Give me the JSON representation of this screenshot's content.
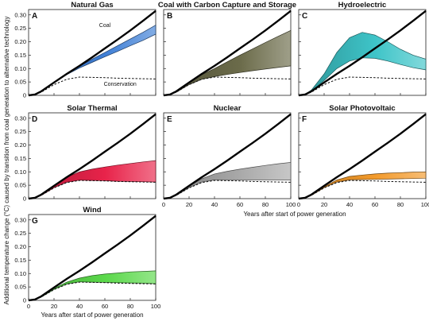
{
  "ylabel": "Additional temperature change (°C) caused by transition from coal generation to alternative technology",
  "xlabel": "Years after start of power generation",
  "chart_data": {
    "type": "area",
    "xlim": [
      0,
      100
    ],
    "ylim": [
      0,
      0.32
    ],
    "xticks": [
      0,
      20,
      40,
      60,
      80,
      100
    ],
    "yticks": [
      0,
      0.05,
      0.1,
      0.15,
      0.2,
      0.25,
      0.3
    ],
    "ytick_labels": [
      "0",
      "0.05",
      "0.10",
      "0.15",
      "0.20",
      "0.25",
      "0.30"
    ],
    "reference_lines": {
      "coal": {
        "label": "Coal",
        "x": [
          0,
          5,
          10,
          20,
          30,
          40,
          50,
          60,
          70,
          80,
          90,
          100
        ],
        "y": [
          0,
          0.003,
          0.015,
          0.048,
          0.08,
          0.11,
          0.142,
          0.175,
          0.208,
          0.242,
          0.278,
          0.315
        ]
      },
      "conservation": {
        "label": "Conservation",
        "x": [
          0,
          5,
          10,
          20,
          30,
          40,
          50,
          60,
          70,
          80,
          90,
          100
        ],
        "y": [
          0,
          0.002,
          0.012,
          0.04,
          0.06,
          0.068,
          0.067,
          0.066,
          0.064,
          0.063,
          0.062,
          0.061
        ]
      }
    },
    "panels": [
      {
        "letter": "A",
        "title": "Natural Gas",
        "color": "#3f7fd6",
        "x": [
          0,
          5,
          10,
          20,
          30,
          40,
          50,
          60,
          70,
          80,
          90,
          100
        ],
        "upper": [
          0,
          0.003,
          0.015,
          0.048,
          0.08,
          0.108,
          0.135,
          0.16,
          0.185,
          0.21,
          0.235,
          0.262
        ],
        "lower": [
          0,
          0.003,
          0.015,
          0.047,
          0.077,
          0.102,
          0.123,
          0.144,
          0.164,
          0.185,
          0.205,
          0.228
        ]
      },
      {
        "letter": "B",
        "title": "Coal with Carbon Capture and Storage",
        "color": "#6b6b4a",
        "x": [
          0,
          5,
          10,
          20,
          30,
          40,
          50,
          60,
          70,
          80,
          90,
          100
        ],
        "upper": [
          0,
          0.003,
          0.015,
          0.048,
          0.077,
          0.1,
          0.125,
          0.15,
          0.173,
          0.197,
          0.22,
          0.242
        ],
        "lower": [
          0,
          0.002,
          0.012,
          0.04,
          0.06,
          0.07,
          0.078,
          0.085,
          0.092,
          0.098,
          0.104,
          0.11
        ]
      },
      {
        "letter": "C",
        "title": "Hydroelectric",
        "color": "#3ec4c8",
        "x": [
          0,
          5,
          10,
          20,
          30,
          40,
          50,
          60,
          70,
          80,
          90,
          100
        ],
        "upper": [
          0,
          0.004,
          0.02,
          0.08,
          0.16,
          0.215,
          0.235,
          0.225,
          0.2,
          0.172,
          0.15,
          0.135
        ],
        "lower": [
          0,
          0.003,
          0.015,
          0.055,
          0.1,
          0.128,
          0.14,
          0.138,
          0.128,
          0.115,
          0.103,
          0.095
        ]
      },
      {
        "letter": "D",
        "title": "Solar Thermal",
        "color": "#e8234a",
        "x": [
          0,
          5,
          10,
          20,
          30,
          40,
          50,
          60,
          70,
          80,
          90,
          100
        ],
        "upper": [
          0,
          0.003,
          0.014,
          0.048,
          0.08,
          0.1,
          0.11,
          0.118,
          0.125,
          0.131,
          0.137,
          0.142
        ],
        "lower": [
          0,
          0.002,
          0.012,
          0.041,
          0.061,
          0.069,
          0.068,
          0.067,
          0.065,
          0.064,
          0.063,
          0.062
        ]
      },
      {
        "letter": "E",
        "title": "Nuclear",
        "color": "#a9a9a9",
        "x": [
          0,
          5,
          10,
          20,
          30,
          40,
          50,
          60,
          70,
          80,
          90,
          100
        ],
        "upper": [
          0,
          0.003,
          0.013,
          0.046,
          0.074,
          0.092,
          0.102,
          0.11,
          0.117,
          0.124,
          0.13,
          0.135
        ],
        "lower": [
          0,
          0.002,
          0.012,
          0.041,
          0.062,
          0.07,
          0.07,
          0.07,
          0.07,
          0.07,
          0.07,
          0.07
        ]
      },
      {
        "letter": "F",
        "title": "Solar Photovoltaic",
        "color": "#f39a2a",
        "x": [
          0,
          5,
          10,
          20,
          30,
          40,
          50,
          60,
          70,
          80,
          90,
          100
        ],
        "upper": [
          0,
          0.002,
          0.013,
          0.044,
          0.07,
          0.083,
          0.088,
          0.092,
          0.095,
          0.097,
          0.099,
          0.1
        ],
        "lower": [
          0,
          0.002,
          0.012,
          0.041,
          0.062,
          0.07,
          0.071,
          0.072,
          0.073,
          0.074,
          0.075,
          0.076
        ]
      },
      {
        "letter": "G",
        "title": "Wind",
        "color": "#5ad84a",
        "x": [
          0,
          5,
          10,
          20,
          30,
          40,
          50,
          60,
          70,
          80,
          90,
          100
        ],
        "upper": [
          0,
          0.002,
          0.013,
          0.044,
          0.068,
          0.083,
          0.092,
          0.098,
          0.102,
          0.106,
          0.108,
          0.11
        ],
        "lower": [
          0,
          0.002,
          0.012,
          0.041,
          0.061,
          0.069,
          0.068,
          0.067,
          0.066,
          0.065,
          0.064,
          0.062
        ]
      }
    ]
  }
}
